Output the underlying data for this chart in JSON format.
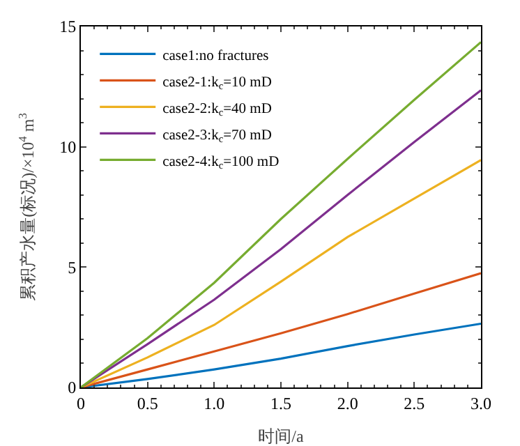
{
  "chart_data": {
    "type": "line",
    "xlabel": "时间/a",
    "ylabel": "累积产水量(标况)/×10$^{4}$ m$^{3}$",
    "x": [
      0,
      0.5,
      1,
      1.5,
      2,
      2.5,
      3
    ],
    "series": [
      {
        "name": "case1:no fractures",
        "color": "#0072bd",
        "values": [
          0,
          0.35,
          0.75,
          1.2,
          1.72,
          2.2,
          2.65
        ]
      },
      {
        "name": "case2-1:k$_{c}$=10 mD",
        "color": "#d95319",
        "values": [
          0,
          0.75,
          1.5,
          2.25,
          3.05,
          3.9,
          4.75
        ]
      },
      {
        "name": "case2-2:k$_{c}$=40 mD",
        "color": "#edb120",
        "values": [
          0,
          1.25,
          2.6,
          4.4,
          6.25,
          7.85,
          9.45
        ]
      },
      {
        "name": "case2-3:k$_{c}$=70 mD",
        "color": "#7e2f8e",
        "values": [
          0,
          1.8,
          3.65,
          5.75,
          8.0,
          10.2,
          12.35
        ]
      },
      {
        "name": "case2-4:k$_{c}$=100 mD",
        "color": "#77ac30",
        "values": [
          0,
          2.05,
          4.35,
          7.0,
          9.5,
          11.95,
          14.35
        ]
      }
    ],
    "xlim": [
      0,
      3
    ],
    "xticks": [
      0,
      0.5,
      {
        "value": 1,
        "label": "1.0"
      },
      1.5,
      {
        "value": 2,
        "label": "2.0"
      },
      2.5,
      {
        "value": 3,
        "label": "3.0"
      }
    ],
    "ylim": [
      0,
      15
    ],
    "yticks": [
      0,
      5,
      10,
      15
    ],
    "grid": false,
    "legend": "top left",
    "marker": "none",
    "line_style": "solid"
  }
}
